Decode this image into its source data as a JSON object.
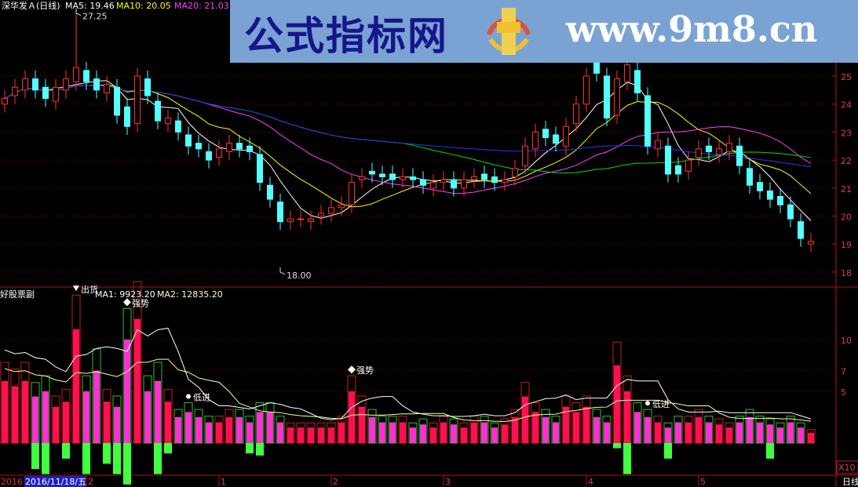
{
  "header": {
    "stock": "深华发Ａ(日线)",
    "ma5": "MA5: 19.46",
    "ma10": "MA10: 20.05",
    "ma20": "MA20: 21.03"
  },
  "sub_header": {
    "title": "好股票副",
    "ma1": "MA1: 9923.20",
    "ma2": "MA2: 12835.20"
  },
  "watermark": {
    "cn": "公式指标网",
    "url": "www.9m8.cn"
  },
  "colors": {
    "up": "#ff3232",
    "down": "#54ffff",
    "ma5": "#ffffff",
    "ma10": "#ffff00",
    "ma20": "#ff40ff",
    "ma_long1": "#00e000",
    "ma_long2": "#3030ff",
    "grid": "#8b0000",
    "vol_up": "#ff1050",
    "vol_down": "#ff30d0",
    "signal": "#40ff40"
  },
  "chart_data": [
    {
      "type": "candlestick",
      "title": "深华发Ａ(日线)",
      "y_ticks": [
        "25",
        "24",
        "23",
        "22",
        "21",
        "20",
        "19",
        "18"
      ],
      "ylim": [
        17.5,
        27.5
      ],
      "grid": true,
      "open": [
        24.0,
        24.3,
        24.5,
        24.9,
        24.6,
        24.1,
        24.5,
        24.8,
        25.2,
        24.9,
        24.4,
        24.6,
        23.9,
        23.3,
        24.9,
        24.1,
        23.3,
        23.4,
        22.9,
        22.6,
        22.3,
        22.1,
        22.3,
        22.6,
        22.5,
        22.2,
        21.1,
        20.5,
        19.8,
        19.9,
        19.8,
        20.0,
        20.1,
        20.3,
        20.4,
        21.3,
        21.6,
        21.5,
        21.5,
        21.3,
        21.4,
        21.3,
        21.0,
        21.2,
        21.3,
        21.0,
        21.3,
        21.5,
        21.4,
        21.2,
        21.4,
        21.8,
        22.4,
        23.1,
        22.9,
        22.5,
        23.3,
        24.0,
        25.5,
        25.0,
        23.6,
        24.8,
        25.2,
        24.3,
        22.4,
        22.5,
        21.8,
        21.6,
        22.1,
        22.5,
        22.2,
        22.3,
        22.5,
        21.7,
        21.2,
        20.9,
        20.7,
        20.4,
        19.8,
        19.0
      ],
      "close": [
        24.2,
        24.6,
        24.9,
        24.5,
        24.2,
        24.6,
        24.9,
        25.3,
        24.8,
        24.5,
        24.7,
        23.6,
        23.2,
        25.0,
        24.3,
        23.4,
        23.5,
        23.0,
        22.5,
        22.4,
        22.0,
        22.4,
        22.6,
        22.4,
        22.3,
        21.2,
        20.6,
        19.8,
        19.9,
        19.9,
        19.9,
        20.1,
        20.3,
        20.4,
        21.2,
        21.4,
        21.5,
        21.4,
        21.3,
        21.4,
        21.3,
        21.1,
        21.2,
        21.3,
        21.0,
        21.3,
        21.4,
        21.3,
        21.2,
        21.3,
        21.7,
        22.5,
        23.0,
        22.8,
        22.6,
        23.2,
        24.0,
        25.0,
        25.1,
        23.5,
        24.9,
        25.4,
        24.4,
        22.5,
        22.7,
        21.5,
        21.5,
        22.0,
        22.4,
        22.3,
        22.4,
        22.6,
        21.8,
        21.1,
        20.9,
        20.6,
        20.4,
        19.9,
        19.2,
        19.1
      ],
      "annotations": [
        {
          "text": "27.25",
          "index": 7,
          "price": 27.25
        },
        {
          "text": "18.00",
          "index": 27,
          "price": 18.0
        }
      ],
      "lines": [
        "MA5",
        "MA10",
        "MA20",
        "MA60"
      ]
    },
    {
      "type": "bar",
      "title": "好股票副",
      "y_ticks": [
        "10",
        "7",
        "5"
      ],
      "ylim": [
        -4.5,
        13
      ],
      "unit": "X10",
      "volume": [
        6,
        5.5,
        6,
        4.5,
        5,
        3.5,
        4,
        11,
        5,
        7,
        4,
        3.5,
        10,
        12,
        5,
        6,
        4,
        2.5,
        3,
        2.5,
        2,
        2,
        2.5,
        2.5,
        2,
        3,
        3,
        2,
        1.5,
        1.5,
        1.5,
        1.5,
        1.5,
        2,
        5,
        3.5,
        2.5,
        2,
        2,
        2,
        1.5,
        1.8,
        1.5,
        2,
        1.8,
        1.5,
        2,
        2,
        1.5,
        1.8,
        2.5,
        4.5,
        3,
        2.5,
        2,
        3.5,
        3,
        3.5,
        2.5,
        2,
        7.5,
        5,
        3,
        2.5,
        2,
        1.5,
        2,
        2,
        2.5,
        2,
        1.8,
        1.5,
        2,
        2.5,
        2,
        1.8,
        1.5,
        2,
        1.5,
        1
      ],
      "signal": [
        0,
        0,
        0,
        -2.5,
        -3,
        0,
        -1.5,
        0,
        -3,
        0,
        -2,
        -3,
        -4,
        0,
        0,
        -3,
        -1,
        0,
        0,
        0,
        0,
        0,
        0,
        0,
        -1,
        -1.2,
        0,
        0,
        0,
        0,
        0,
        0,
        0,
        0,
        0,
        0,
        0,
        0,
        0,
        0,
        0,
        0,
        0,
        0,
        0,
        0,
        0,
        0,
        0,
        0,
        0,
        0,
        0,
        0,
        0,
        0,
        0,
        0,
        0,
        0,
        -0.5,
        -3,
        0,
        0,
        0,
        -1.5,
        0,
        0,
        0,
        0,
        0,
        0,
        0,
        0,
        0,
        -1.5,
        0,
        0,
        0,
        0
      ],
      "annotations": [
        {
          "text": "出货",
          "index": 7,
          "marker": "triangle-down"
        },
        {
          "text": "强势",
          "index": 12,
          "marker": "diamond"
        },
        {
          "text": "强势",
          "index": 34,
          "marker": "diamond"
        },
        {
          "text": "低进",
          "index": 18,
          "marker": "dot"
        },
        {
          "text": "低进",
          "index": 63,
          "marker": "dot"
        }
      ]
    }
  ],
  "x_axis": {
    "start_year": "2016",
    "cursor_date": "2016/11/18/五",
    "months": [
      {
        "label": "2",
        "index": 8
      },
      {
        "label": "1",
        "index": 21
      },
      {
        "label": "2",
        "index": 32
      },
      {
        "label": "3",
        "index": 43
      },
      {
        "label": "4",
        "index": 57
      },
      {
        "label": "5",
        "index": 68
      }
    ],
    "period": "日线"
  }
}
